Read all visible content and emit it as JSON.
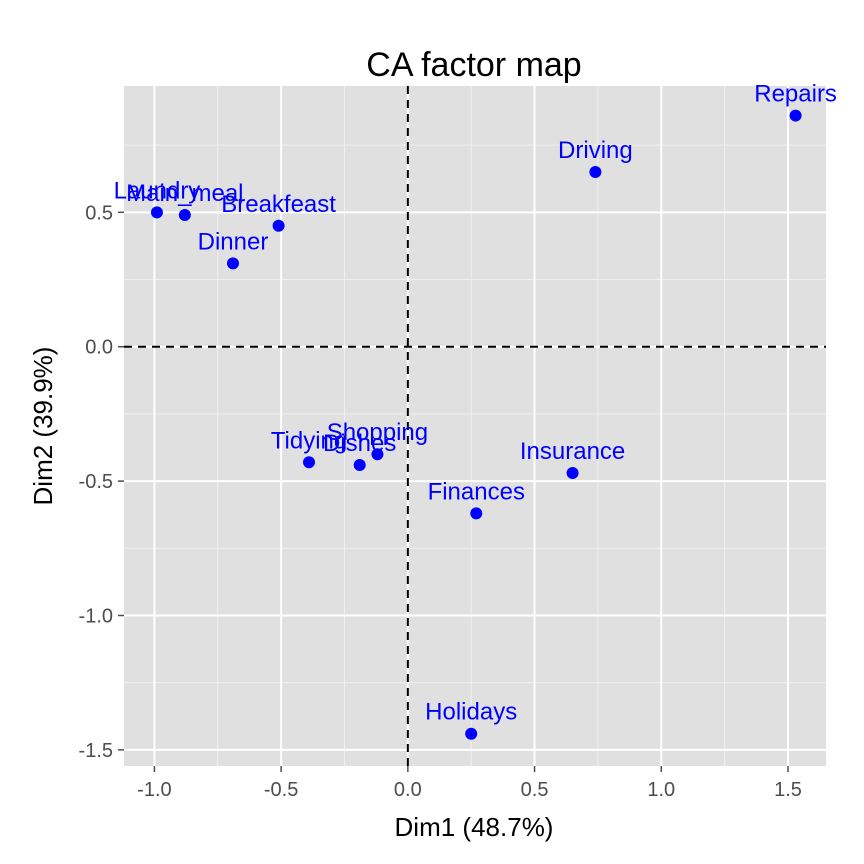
{
  "chart_data": {
    "type": "scatter",
    "title": "CA factor map",
    "xlabel": "Dim1 (48.7%)",
    "ylabel": "Dim2 (39.9%)",
    "xlim": [
      -1.12,
      1.65
    ],
    "ylim": [
      -1.56,
      0.97
    ],
    "x_ticks": [
      -1.0,
      -0.5,
      0.0,
      0.5,
      1.0,
      1.5
    ],
    "x_tick_labels": [
      "-1.0",
      "-0.5",
      "0.0",
      "0.5",
      "1.0",
      "1.5"
    ],
    "y_ticks": [
      -1.5,
      -1.0,
      -0.5,
      0.0,
      0.5
    ],
    "y_tick_labels": [
      "-1.5",
      "-1.0",
      "-0.5",
      "0.0",
      "0.5"
    ],
    "grid": true,
    "reference_lines": {
      "x": 0,
      "y": 0,
      "style": "dashed"
    },
    "colors": {
      "panel": "#e0e0e0",
      "grid_major": "#ffffff",
      "grid_minor": "#f0f0f0",
      "point": "#0000ff",
      "reference": "#000000"
    },
    "points": [
      {
        "label": "Laundry",
        "x": -0.99,
        "y": 0.5
      },
      {
        "label": "Main_meal",
        "x": -0.88,
        "y": 0.49
      },
      {
        "label": "Breakfeast",
        "x": -0.51,
        "y": 0.45
      },
      {
        "label": "Dinner",
        "x": -0.69,
        "y": 0.31
      },
      {
        "label": "Driving",
        "x": 0.74,
        "y": 0.65
      },
      {
        "label": "Repairs",
        "x": 1.53,
        "y": 0.86
      },
      {
        "label": "Tidying",
        "x": -0.39,
        "y": -0.43
      },
      {
        "label": "Dishes",
        "x": -0.19,
        "y": -0.44
      },
      {
        "label": "Shopping",
        "x": -0.12,
        "y": -0.4
      },
      {
        "label": "Insurance",
        "x": 0.65,
        "y": -0.47
      },
      {
        "label": "Finances",
        "x": 0.27,
        "y": -0.62
      },
      {
        "label": "Holidays",
        "x": 0.25,
        "y": -1.44
      }
    ]
  }
}
